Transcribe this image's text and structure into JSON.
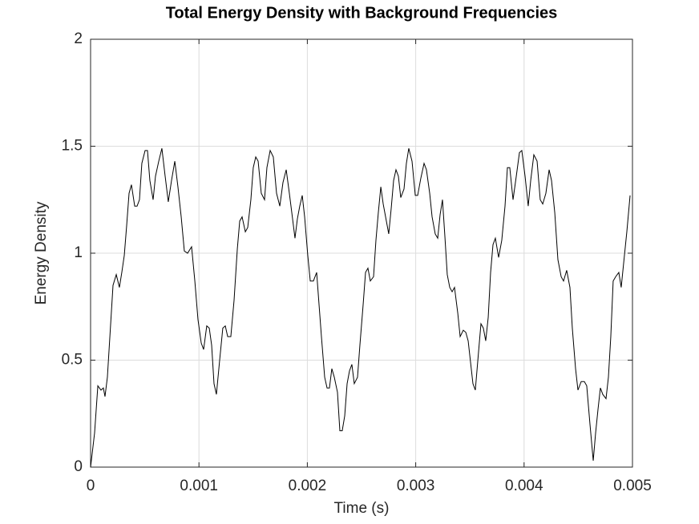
{
  "chart_data": {
    "type": "line",
    "title": "Total Energy Density with Background Frequencies",
    "xlabel": "Time (s)",
    "ylabel": "Energy Density",
    "color": "#000000",
    "grid": true,
    "xlim": [
      0,
      0.005
    ],
    "xticks": [
      0,
      0.001,
      0.002,
      0.003,
      0.004,
      0.005
    ],
    "ylim": [
      0,
      2
    ],
    "yticks": [
      0,
      0.5,
      1,
      1.5,
      2
    ],
    "x": [
      0,
      3.7e-05,
      6.7e-05,
      9.6e-05,
      0.000118,
      0.000133,
      0.000155,
      0.000178,
      0.000207,
      0.000237,
      0.000266,
      0.000288,
      0.000311,
      0.000333,
      0.000355,
      0.000377,
      0.000407,
      0.000429,
      0.000451,
      0.000473,
      0.000503,
      0.000525,
      0.000547,
      0.000577,
      0.000599,
      0.000629,
      0.000658,
      0.000688,
      0.000717,
      0.000747,
      0.000777,
      0.000806,
      0.000836,
      0.000865,
      0.000895,
      0.000932,
      0.000962,
      0.000991,
      0.001021,
      0.001043,
      0.001072,
      0.001095,
      0.001117,
      0.001139,
      0.001161,
      0.001191,
      0.00122,
      0.001243,
      0.001265,
      0.001294,
      0.001324,
      0.001354,
      0.001376,
      0.001398,
      0.001428,
      0.00145,
      0.001479,
      0.001501,
      0.001524,
      0.001546,
      0.001575,
      0.001605,
      0.001627,
      0.001657,
      0.001686,
      0.001716,
      0.001746,
      0.001775,
      0.001805,
      0.001834,
      0.001864,
      0.001886,
      0.001908,
      0.00193,
      0.001953,
      0.001975,
      0.002004,
      0.002027,
      0.002056,
      0.002086,
      0.002108,
      0.00213,
      0.00216,
      0.002182,
      0.002204,
      0.002226,
      0.002249,
      0.002278,
      0.0023,
      0.002322,
      0.002345,
      0.002367,
      0.002389,
      0.002411,
      0.002433,
      0.002463,
      0.002485,
      0.002515,
      0.002537,
      0.002559,
      0.002581,
      0.002611,
      0.002633,
      0.002655,
      0.002678,
      0.0027,
      0.002722,
      0.002751,
      0.002774,
      0.002796,
      0.002818,
      0.00284,
      0.002862,
      0.002892,
      0.002914,
      0.002936,
      0.002966,
      0.002996,
      0.003018,
      0.003047,
      0.003077,
      0.003099,
      0.003129,
      0.003151,
      0.00318,
      0.003203,
      0.003225,
      0.003247,
      0.003269,
      0.003291,
      0.003314,
      0.003336,
      0.003358,
      0.003388,
      0.00341,
      0.003439,
      0.003462,
      0.003484,
      0.003506,
      0.003528,
      0.00355,
      0.00358,
      0.003602,
      0.003624,
      0.003646,
      0.003669,
      0.003691,
      0.003713,
      0.003735,
      0.003765,
      0.003794,
      0.003824,
      0.003846,
      0.003868,
      0.003898,
      0.003928,
      0.003957,
      0.003979,
      0.004009,
      0.004038,
      0.004061,
      0.00409,
      0.00412,
      0.004149,
      0.004172,
      0.004201,
      0.004231,
      0.004253,
      0.004283,
      0.004312,
      0.004342,
      0.004364,
      0.004393,
      0.004423,
      0.004445,
      0.004475,
      0.004497,
      0.004527,
      0.004556,
      0.004578,
      0.004608,
      0.004638,
      0.00466,
      0.004682,
      0.004704,
      0.004726,
      0.004756,
      0.004778,
      0.0048,
      0.004822,
      0.004845,
      0.004874,
      0.004896,
      0.004918,
      0.004948,
      0.004978
    ],
    "values": [
      0,
      0.16,
      0.38,
      0.36,
      0.37,
      0.33,
      0.42,
      0.61,
      0.85,
      0.9,
      0.84,
      0.91,
      0.99,
      1.13,
      1.28,
      1.32,
      1.22,
      1.22,
      1.25,
      1.42,
      1.48,
      1.48,
      1.34,
      1.25,
      1.36,
      1.43,
      1.49,
      1.36,
      1.24,
      1.34,
      1.43,
      1.31,
      1.17,
      1.01,
      1.0,
      1.03,
      0.87,
      0.69,
      0.58,
      0.55,
      0.66,
      0.65,
      0.57,
      0.39,
      0.34,
      0.5,
      0.65,
      0.66,
      0.61,
      0.61,
      0.78,
      1.02,
      1.15,
      1.17,
      1.1,
      1.12,
      1.25,
      1.4,
      1.45,
      1.43,
      1.28,
      1.25,
      1.4,
      1.48,
      1.45,
      1.28,
      1.22,
      1.33,
      1.39,
      1.28,
      1.16,
      1.07,
      1.16,
      1.22,
      1.27,
      1.17,
      0.99,
      0.87,
      0.87,
      0.91,
      0.76,
      0.61,
      0.42,
      0.37,
      0.37,
      0.46,
      0.42,
      0.35,
      0.17,
      0.17,
      0.24,
      0.39,
      0.45,
      0.48,
      0.39,
      0.42,
      0.57,
      0.76,
      0.91,
      0.93,
      0.87,
      0.89,
      1.06,
      1.19,
      1.31,
      1.23,
      1.17,
      1.09,
      1.21,
      1.34,
      1.39,
      1.36,
      1.26,
      1.3,
      1.42,
      1.49,
      1.43,
      1.27,
      1.27,
      1.35,
      1.42,
      1.39,
      1.28,
      1.17,
      1.09,
      1.07,
      1.18,
      1.25,
      1.08,
      0.9,
      0.84,
      0.82,
      0.84,
      0.72,
      0.61,
      0.64,
      0.63,
      0.59,
      0.49,
      0.39,
      0.36,
      0.54,
      0.67,
      0.65,
      0.59,
      0.7,
      0.91,
      1.04,
      1.07,
      0.98,
      1.06,
      1.22,
      1.4,
      1.4,
      1.25,
      1.36,
      1.47,
      1.48,
      1.36,
      1.22,
      1.34,
      1.46,
      1.43,
      1.25,
      1.23,
      1.28,
      1.39,
      1.34,
      1.19,
      0.97,
      0.89,
      0.87,
      0.92,
      0.84,
      0.65,
      0.46,
      0.36,
      0.4,
      0.4,
      0.38,
      0.2,
      0.03,
      0.16,
      0.27,
      0.37,
      0.34,
      0.32,
      0.42,
      0.61,
      0.87,
      0.89,
      0.91,
      0.84,
      0.95,
      1.1,
      1.27
    ]
  }
}
